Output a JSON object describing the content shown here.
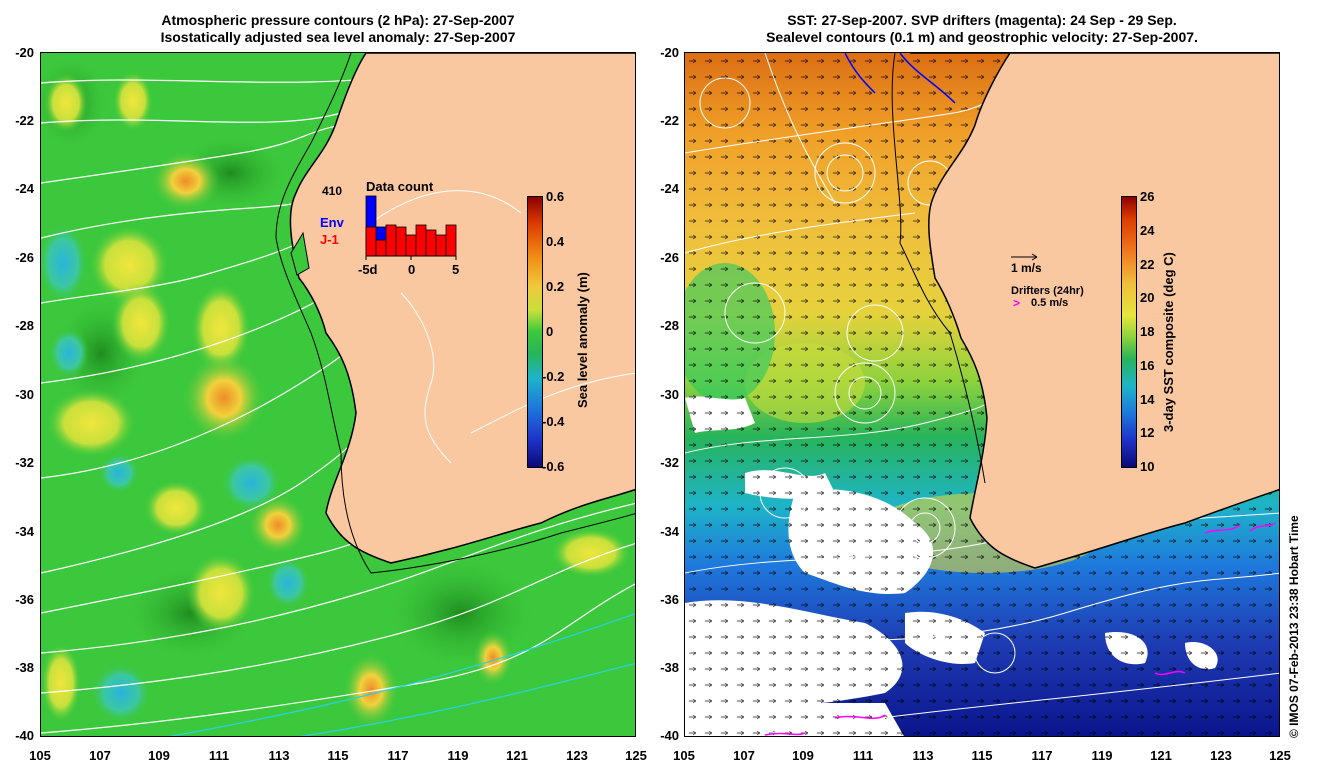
{
  "left_panel": {
    "title_line1": "Atmospheric pressure contours (2 hPa): 27-Sep-2007",
    "title_line2": "Isostatically adjusted sea level anomaly: 27-Sep-2007",
    "colorbar": {
      "label": "Sea level anomaly (m)",
      "ticks": [
        "0.6",
        "0.4",
        "0.2",
        "0",
        "-0.2",
        "-0.4",
        "-0.6"
      ],
      "range": [
        -0.6,
        0.6
      ]
    },
    "inset": {
      "title": "Data count",
      "max_label": "410",
      "legend_env": "Env",
      "legend_j1": "J-1",
      "xticks": [
        "-5d",
        "0",
        "5"
      ],
      "env_color": "#0000ff",
      "j1_color": "#ff0000"
    }
  },
  "right_panel": {
    "title_line1": "SST: 27-Sep-2007. SVP drifters (magenta): 24 Sep - 29 Sep.",
    "title_line2": "Sealevel contours (0.1 m) and geostrophic velocity: 27-Sep-2007.",
    "colorbar": {
      "label": "3-day SST composite (deg C)",
      "ticks": [
        "26",
        "24",
        "22",
        "20",
        "18",
        "16",
        "14",
        "12",
        "10"
      ],
      "range": [
        10,
        26
      ]
    },
    "velocity_scale": "1 m/s",
    "drifters_label": "Drifters (24hr)",
    "drifters_scale": "0.5 m/s",
    "drifter_color": "#ff00ff"
  },
  "axes": {
    "lat_ticks": [
      "-20",
      "-22",
      "-24",
      "-26",
      "-28",
      "-30",
      "-32",
      "-34",
      "-36",
      "-38",
      "-40"
    ],
    "lon_ticks": [
      "105",
      "107",
      "109",
      "111",
      "113",
      "115",
      "117",
      "119",
      "121",
      "123",
      "125"
    ]
  },
  "credit": "© IMOS 07-Feb-2013 23:38 Hobart Time",
  "colors": {
    "land": "#fac8a0",
    "ocean_sla": "#3cc83c",
    "coast": "#000000"
  }
}
